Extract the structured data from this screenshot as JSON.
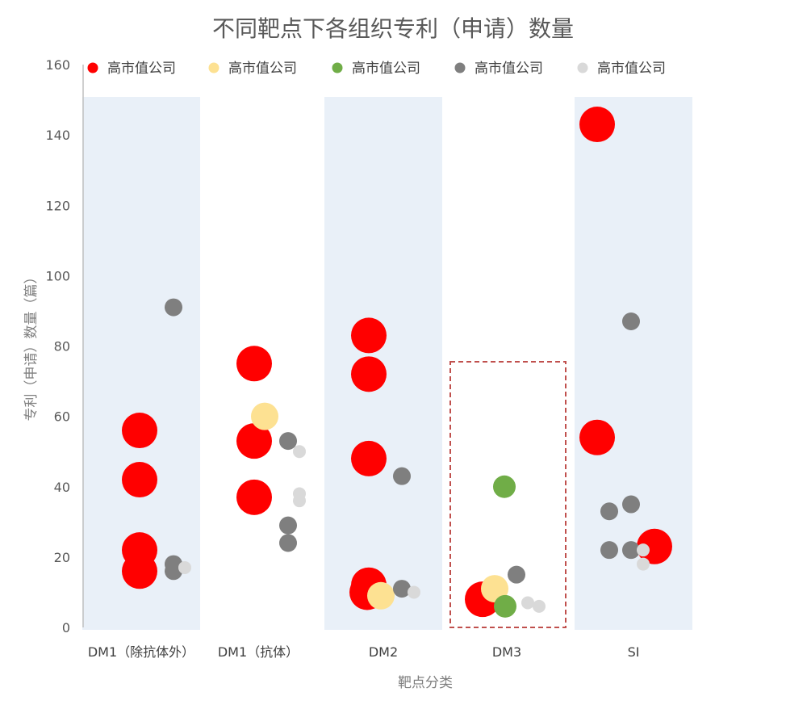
{
  "chart_data": {
    "type": "scatter",
    "title": "不同靶点下各组织专利（申请）数量",
    "xlabel": "靶点分类",
    "ylabel": "专利（申请）数量（篇）",
    "ylim": [
      0,
      160
    ],
    "yticks": [
      "0",
      "20",
      "40",
      "60",
      "80",
      "100",
      "120",
      "140",
      "160"
    ],
    "categories": [
      "DM1（除抗体外）",
      "DM1（抗体）",
      "DM2",
      "DM3",
      "SI"
    ],
    "grid": false,
    "legend_position": "top",
    "highlight": {
      "category": "DM3",
      "style": "red dashed box"
    },
    "series": [
      {
        "name": "高市值公司",
        "color": "#ff0000",
        "points": [
          {
            "x": "DM1（除抗体外）",
            "y": 56
          },
          {
            "x": "DM1（除抗体外）",
            "y": 42
          },
          {
            "x": "DM1（除抗体外）",
            "y": 22
          },
          {
            "x": "DM1（除抗体外）",
            "y": 16
          },
          {
            "x": "DM1（抗体）",
            "y": 75
          },
          {
            "x": "DM1（抗体）",
            "y": 53
          },
          {
            "x": "DM1（抗体）",
            "y": 37
          },
          {
            "x": "DM2",
            "y": 83
          },
          {
            "x": "DM2",
            "y": 72
          },
          {
            "x": "DM2",
            "y": 48
          },
          {
            "x": "DM2",
            "y": 12
          },
          {
            "x": "DM2",
            "y": 10
          },
          {
            "x": "DM3",
            "y": 8
          },
          {
            "x": "SI",
            "y": 143
          },
          {
            "x": "SI",
            "y": 54
          },
          {
            "x": "SI",
            "y": 23
          }
        ]
      },
      {
        "name": "高市值公司",
        "color": "#fde192",
        "points": [
          {
            "x": "DM1（抗体）",
            "y": 60
          },
          {
            "x": "DM2",
            "y": 9
          },
          {
            "x": "DM3",
            "y": 11
          }
        ]
      },
      {
        "name": "高市值公司",
        "color": "#70ad47",
        "points": [
          {
            "x": "DM3",
            "y": 40
          },
          {
            "x": "DM3",
            "y": 6
          }
        ]
      },
      {
        "name": "高市值公司",
        "color": "#7f7f7f",
        "points": [
          {
            "x": "DM1（除抗体外）",
            "y": 91
          },
          {
            "x": "DM1（除抗体外）",
            "y": 18
          },
          {
            "x": "DM1（除抗体外）",
            "y": 16
          },
          {
            "x": "DM1（抗体）",
            "y": 53
          },
          {
            "x": "DM1（抗体）",
            "y": 29
          },
          {
            "x": "DM1（抗体）",
            "y": 24
          },
          {
            "x": "DM2",
            "y": 43
          },
          {
            "x": "DM2",
            "y": 11
          },
          {
            "x": "DM3",
            "y": 15
          },
          {
            "x": "SI",
            "y": 87
          },
          {
            "x": "SI",
            "y": 35
          },
          {
            "x": "SI",
            "y": 33
          },
          {
            "x": "SI",
            "y": 22
          },
          {
            "x": "SI",
            "y": 22
          }
        ]
      },
      {
        "name": "高市值公司",
        "color": "#d9d9d9",
        "points": [
          {
            "x": "DM1（除抗体外）",
            "y": 17
          },
          {
            "x": "DM1（抗体）",
            "y": 50
          },
          {
            "x": "DM1（抗体）",
            "y": 38
          },
          {
            "x": "DM1（抗体）",
            "y": 36
          },
          {
            "x": "DM2",
            "y": 10
          },
          {
            "x": "DM3",
            "y": 7
          },
          {
            "x": "DM3",
            "y": 6
          },
          {
            "x": "DM3",
            "y": 7
          },
          {
            "x": "SI",
            "y": 18
          },
          {
            "x": "SI",
            "y": 22
          }
        ]
      }
    ]
  }
}
